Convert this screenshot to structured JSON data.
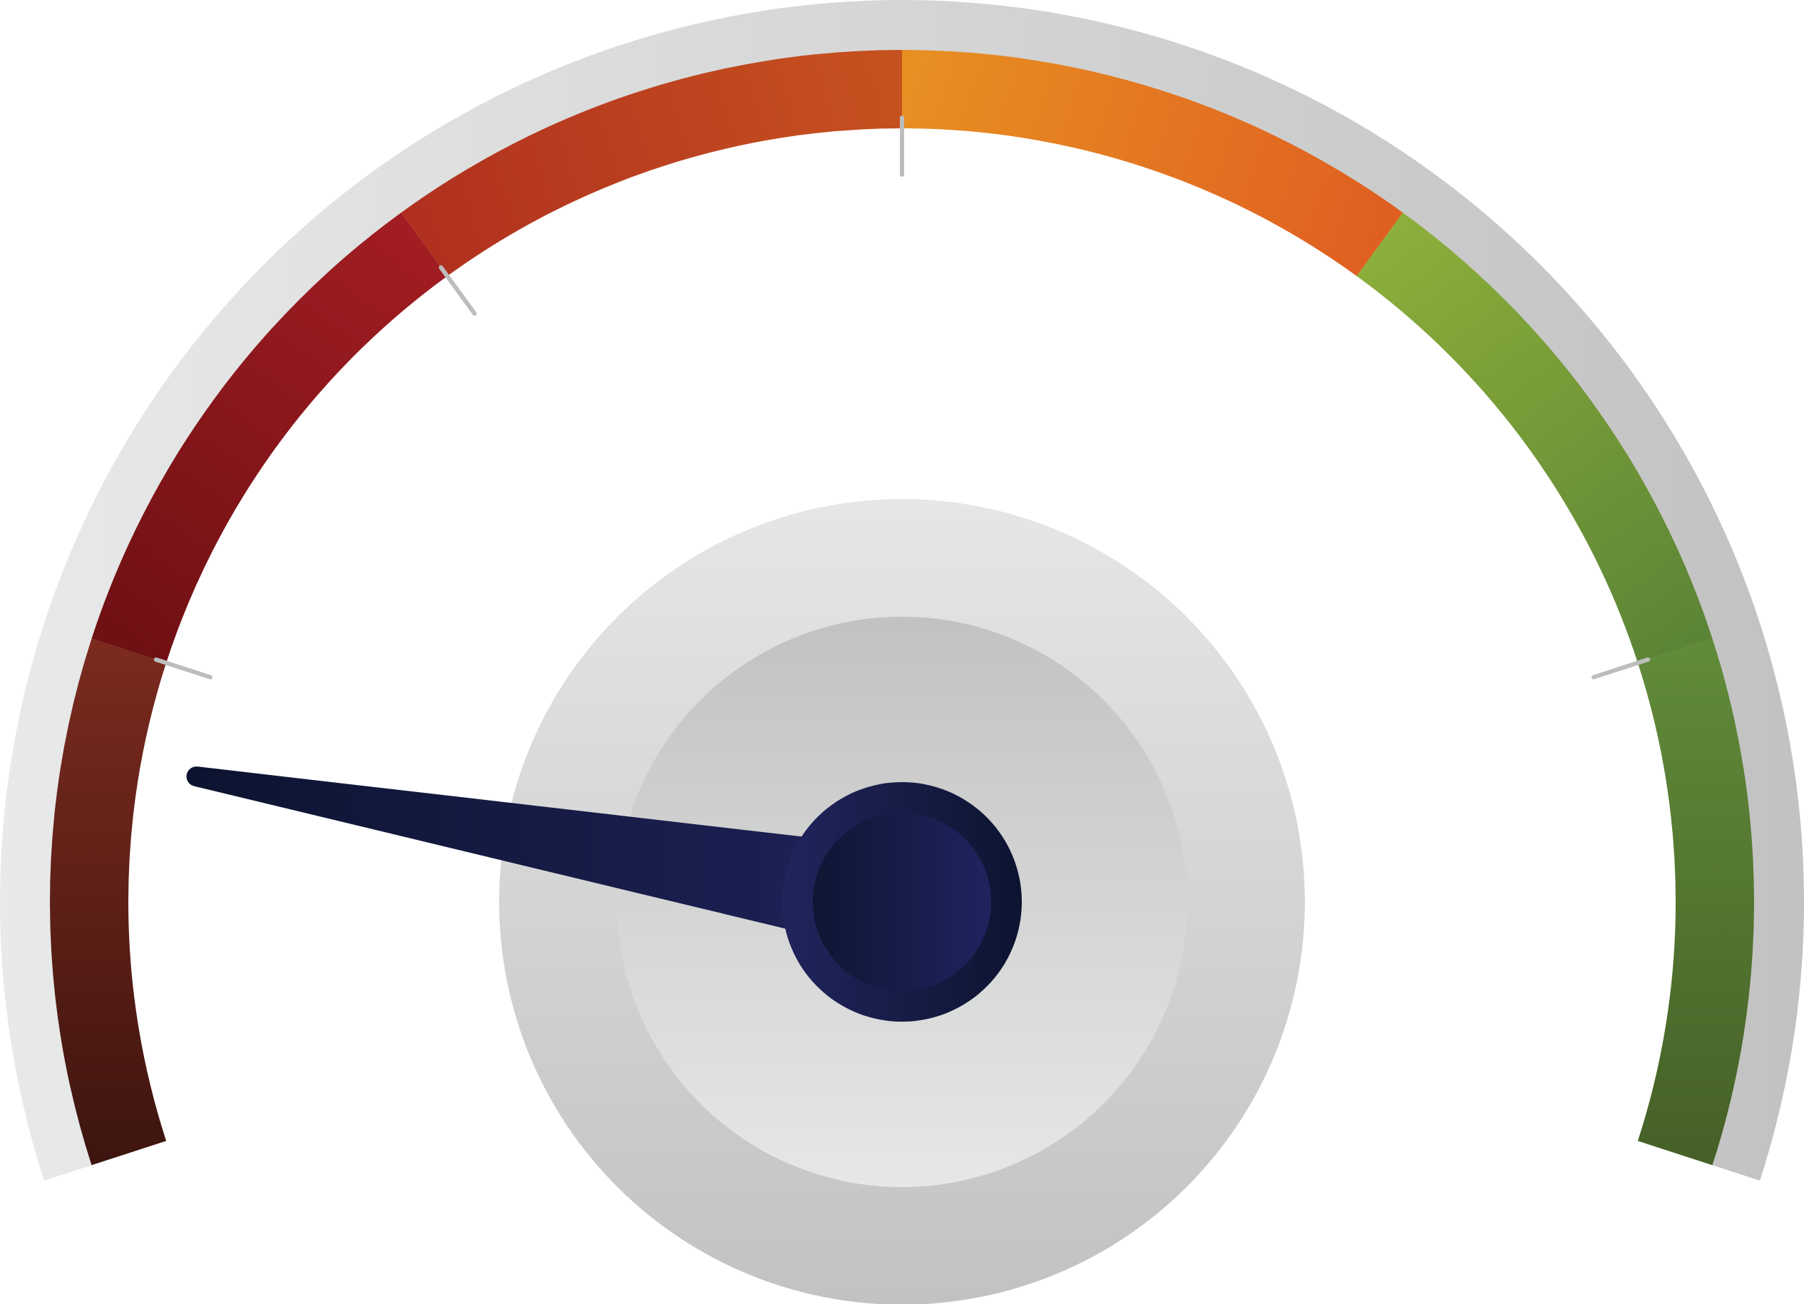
{
  "gauge": {
    "segments": [
      {
        "name": "dark-red",
        "from": "#3f150f",
        "to": "#7a2a1e"
      },
      {
        "name": "red",
        "from": "#6e1014",
        "to": "#a11d22"
      },
      {
        "name": "red-orange",
        "from": "#b0301f",
        "to": "#c6521f"
      },
      {
        "name": "orange",
        "from": "#e88f22",
        "to": "#df5f21"
      },
      {
        "name": "yellow-green",
        "from": "#8cae3a",
        "to": "#5c8436"
      },
      {
        "name": "dark-green",
        "from": "#618a39",
        "to": "#466128"
      }
    ],
    "needle_level_fraction": 0.13,
    "colors": {
      "bezel_light": "#e6e6e6",
      "bezel_dark": "#c3c3c3",
      "needle_dark": "#0c1430",
      "needle_mid": "#1f2259",
      "tick": "#bdbdbd"
    }
  }
}
